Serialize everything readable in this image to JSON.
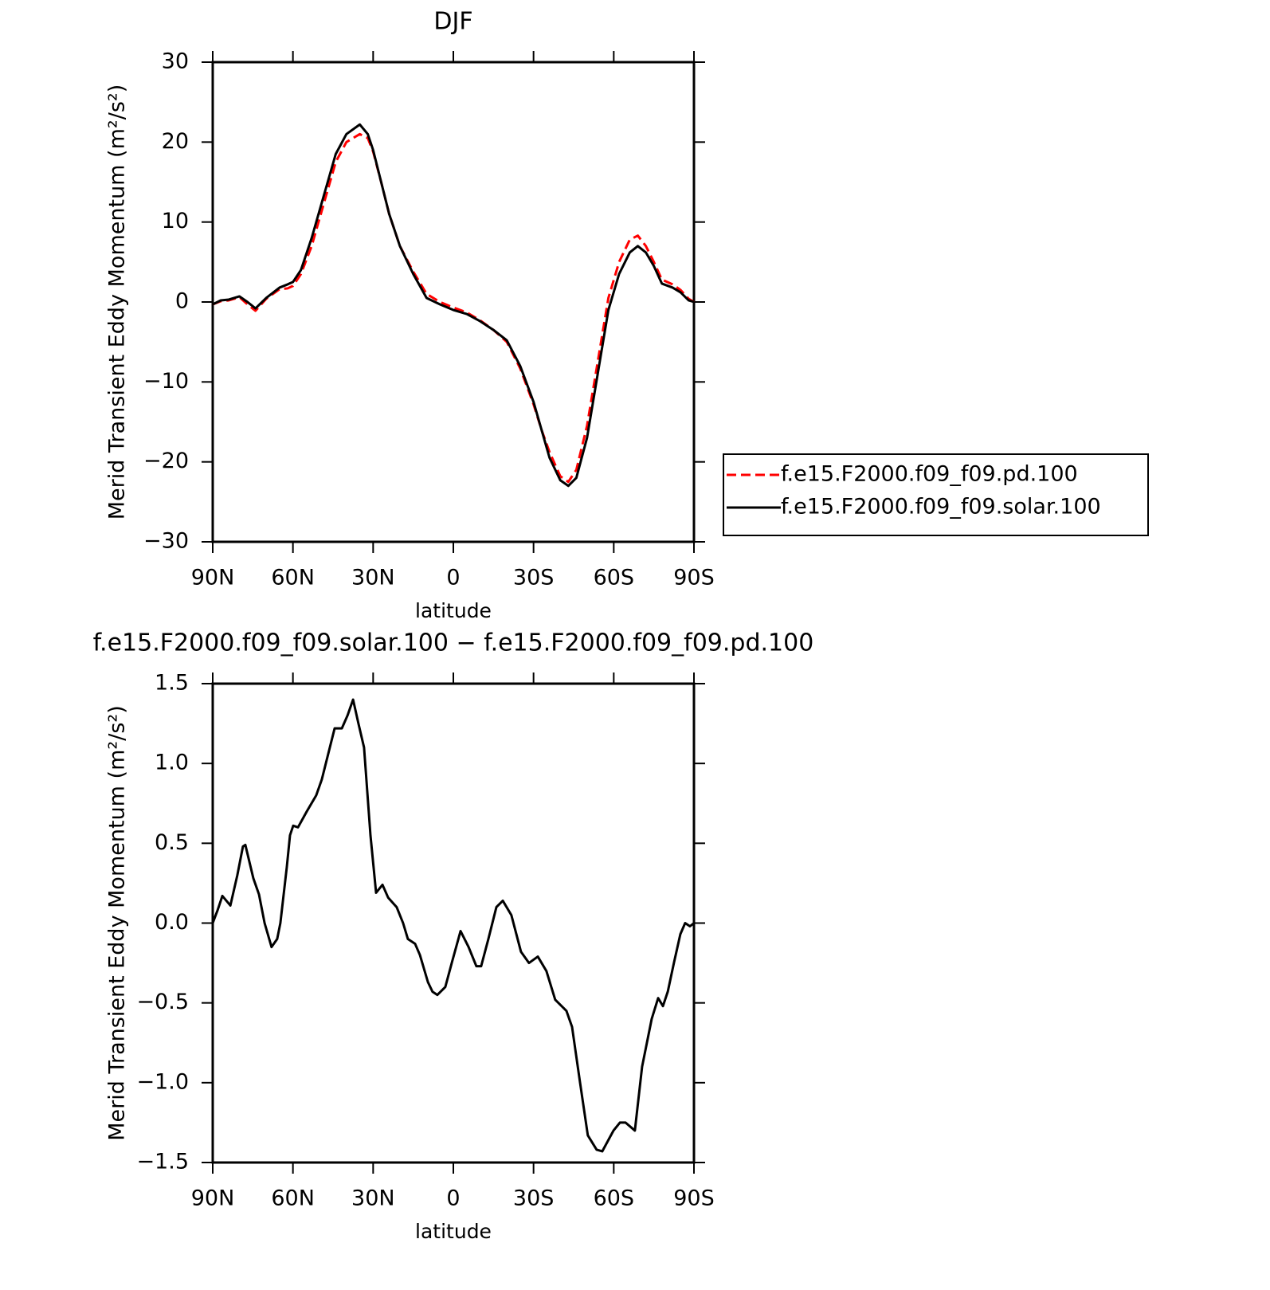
{
  "chart_data": [
    {
      "type": "line",
      "title": "DJF",
      "x_label": "latitude",
      "y_label": "Merid Transient Eddy Momentum (m²/s²)",
      "x": [
        90,
        87,
        84,
        80,
        77,
        74,
        70,
        65,
        62,
        60,
        57,
        53,
        50,
        47,
        44,
        40,
        35,
        32,
        30,
        27,
        24,
        20,
        15,
        10,
        5,
        0,
        -5,
        -10,
        -15,
        -20,
        -25,
        -30,
        -33,
        -36,
        -40,
        -43,
        -46,
        -50,
        -54,
        -58,
        -62,
        -66,
        -69,
        -72,
        -75,
        -78,
        -82,
        -85,
        -88,
        -90
      ],
      "series": [
        {
          "name": "f.e15.F2000.f09_f09.pd.100",
          "color": "#ff0000",
          "line_style": "dashed",
          "values": [
            -0.3,
            0.1,
            0.2,
            0.6,
            -0.3,
            -1.1,
            0.4,
            1.6,
            1.7,
            2,
            3.5,
            7,
            10.5,
            14,
            17.5,
            20,
            21,
            20.5,
            18.8,
            15,
            11,
            7,
            3.8,
            1,
            0,
            -0.7,
            -1.3,
            -2.3,
            -3.5,
            -5,
            -8.3,
            -12.8,
            -16,
            -18.8,
            -21.8,
            -22.5,
            -21,
            -15.5,
            -7.5,
            0.5,
            5,
            7.8,
            8.3,
            7,
            5,
            2.8,
            2.2,
            1.5,
            0.4,
            0
          ]
        },
        {
          "name": "f.e15.F2000.f09_f09.solar.100",
          "color": "#000000",
          "line_style": "solid",
          "values": [
            -0.3,
            0.2,
            0.3,
            0.7,
            0,
            -0.8,
            0.5,
            1.8,
            2.2,
            2.5,
            4,
            8,
            11.5,
            15,
            18.5,
            21,
            22.2,
            21,
            19,
            15,
            11,
            7,
            3.5,
            0.5,
            -0.3,
            -1,
            -1.5,
            -2.4,
            -3.5,
            -4.8,
            -8,
            -12.5,
            -16,
            -19.5,
            -22.3,
            -23,
            -22,
            -17,
            -9,
            -1,
            3.5,
            6.2,
            7,
            6.2,
            4.5,
            2.3,
            1.8,
            1.2,
            0.2,
            0
          ]
        }
      ],
      "xlim": [
        90,
        -90
      ],
      "xticks": [
        {
          "value": 90,
          "label": "90N"
        },
        {
          "value": 60,
          "label": "60N"
        },
        {
          "value": 30,
          "label": "30N"
        },
        0,
        {
          "value": -30,
          "label": "30S"
        },
        {
          "value": -60,
          "label": "60S"
        },
        {
          "value": -90,
          "label": "90S"
        }
      ],
      "ylim": [
        -30,
        30
      ],
      "yticks": [
        {
          "value": -30,
          "label": "−30"
        },
        {
          "value": -20,
          "label": "−20"
        },
        {
          "value": -10,
          "label": "−10"
        },
        0,
        10,
        20,
        30
      ],
      "legend": "right"
    },
    {
      "type": "line",
      "title": "f.e15.F2000.f09_f09.solar.100 − f.e15.F2000.f09_f09.pd.100",
      "x_label": "latitude",
      "y_label": "Merid Transient Eddy Momentum (m²/s²)",
      "x": [
        90,
        88.2,
        86.4,
        83.4,
        80.8,
        78.7,
        77.8,
        74.8,
        72.7,
        70.6,
        68,
        65.9,
        64.7,
        62.3,
        61.1,
        59.9,
        58.1,
        54.8,
        51.3,
        49.2,
        46.2,
        44.4,
        41.7,
        39.6,
        37.5,
        35.5,
        33.4,
        31,
        28.9,
        26.5,
        24.4,
        21.2,
        18.8,
        17,
        14.3,
        12.5,
        9.5,
        7.8,
        6,
        3,
        0.6,
        -2.7,
        -5.7,
        -8.6,
        -10.4,
        -13.1,
        -16.1,
        -18.5,
        -21.7,
        -25.3,
        -28.3,
        -31.6,
        -34.8,
        -38.1,
        -42.3,
        -44.4,
        -47.4,
        -50.3,
        -53.6,
        -55.7,
        -59.9,
        -62.3,
        -64.4,
        -67.9,
        -70.6,
        -74.2,
        -76.6,
        -78.4,
        -80.2,
        -82.5,
        -84.9,
        -86.7,
        -88.5,
        -90
      ],
      "series": [
        {
          "color": "#000000",
          "line_style": "solid",
          "values": [
            0,
            0.08,
            0.17,
            0.11,
            0.3,
            0.48,
            0.49,
            0.28,
            0.18,
            0,
            -0.15,
            -0.1,
            0,
            0.35,
            0.55,
            0.61,
            0.6,
            0.7,
            0.8,
            0.9,
            1.1,
            1.22,
            1.22,
            1.3,
            1.4,
            1.25,
            1.1,
            0.55,
            0.19,
            0.24,
            0.16,
            0.1,
            0,
            -0.1,
            -0.13,
            -0.2,
            -0.37,
            -0.43,
            -0.45,
            -0.4,
            -0.25,
            -0.05,
            -0.15,
            -0.27,
            -0.27,
            -0.1,
            0.1,
            0.14,
            0.05,
            -0.18,
            -0.25,
            -0.21,
            -0.3,
            -0.48,
            -0.55,
            -0.65,
            -1,
            -1.33,
            -1.42,
            -1.43,
            -1.3,
            -1.25,
            -1.25,
            -1.3,
            -0.9,
            -0.6,
            -0.47,
            -0.52,
            -0.43,
            -0.25,
            -0.07,
            0,
            -0.02,
            0
          ]
        }
      ],
      "xlim": [
        90,
        -90
      ],
      "xticks": [
        {
          "value": 90,
          "label": "90N"
        },
        {
          "value": 60,
          "label": "60N"
        },
        {
          "value": 30,
          "label": "30N"
        },
        0,
        {
          "value": -30,
          "label": "30S"
        },
        {
          "value": -60,
          "label": "60S"
        },
        {
          "value": -90,
          "label": "90S"
        }
      ],
      "ylim": [
        -1.5,
        1.5
      ],
      "yticks": [
        {
          "value": -1.5,
          "label": "−1.5"
        },
        {
          "value": -1,
          "label": "−1.0"
        },
        {
          "value": -0.5,
          "label": "−0.5"
        },
        {
          "value": 0,
          "label": "0.0"
        },
        {
          "value": 0.5,
          "label": "0.5"
        },
        {
          "value": 1,
          "label": "1.0"
        },
        {
          "value": 1.5,
          "label": "1.5"
        }
      ]
    }
  ]
}
